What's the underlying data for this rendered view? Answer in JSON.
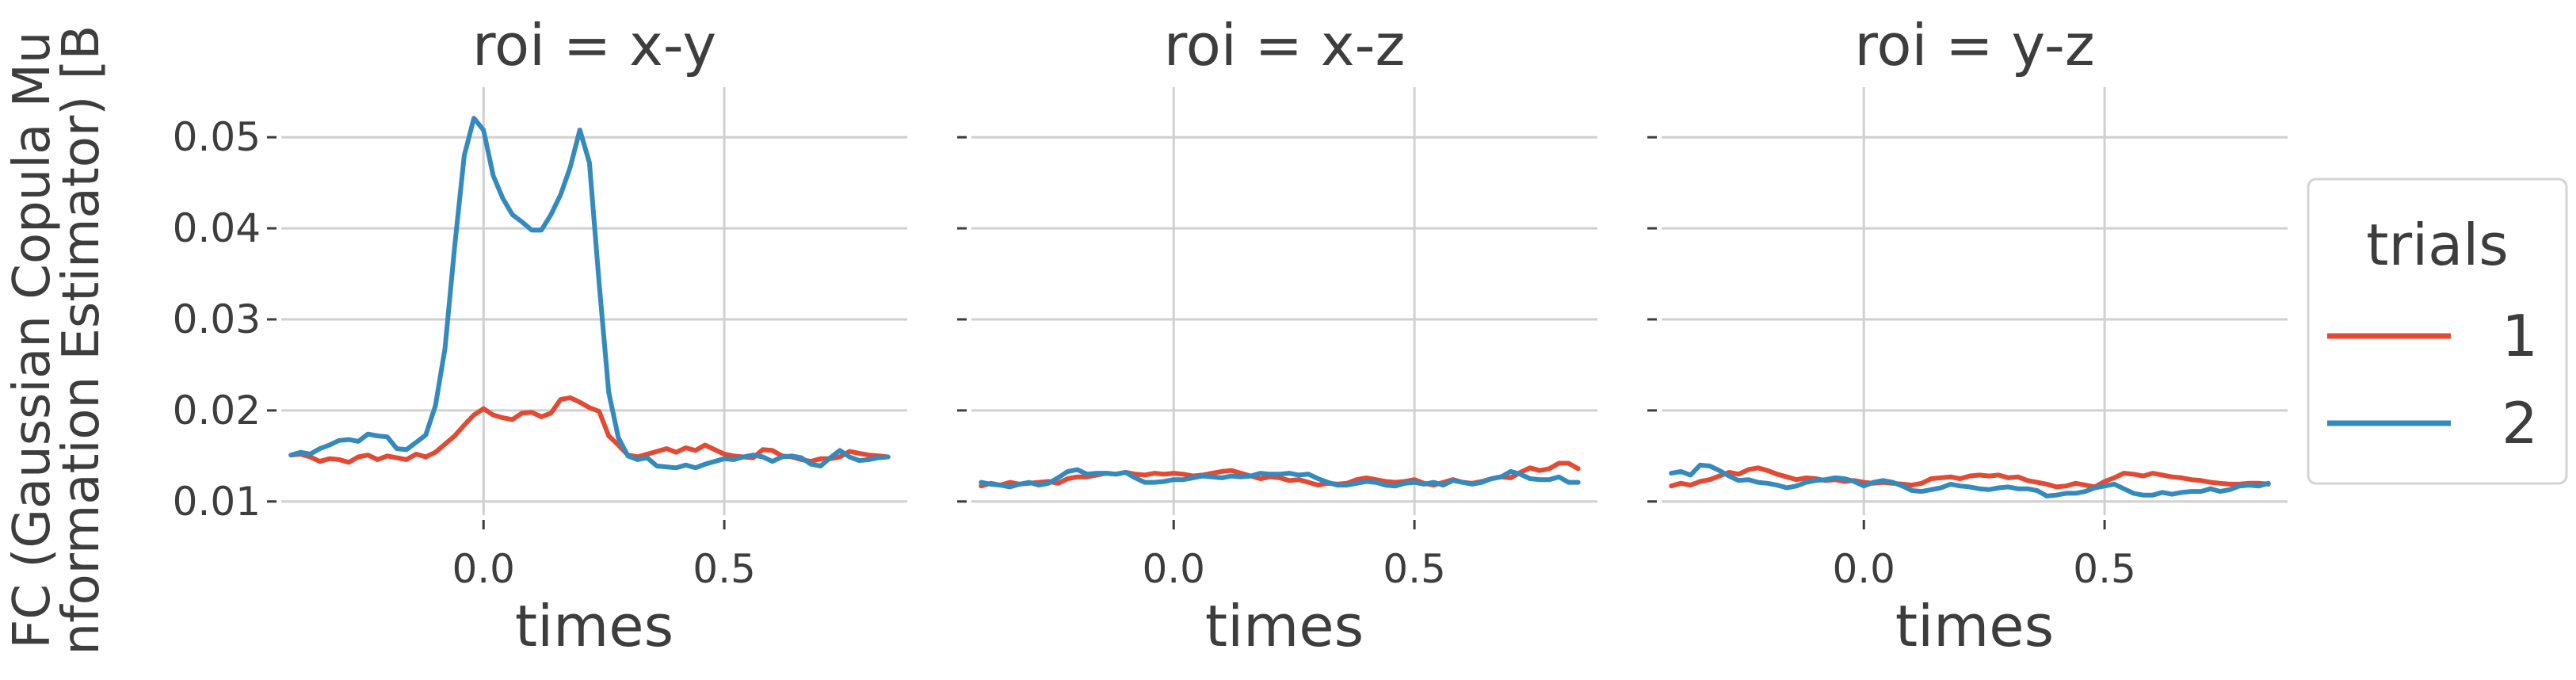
{
  "chart_data": {
    "type": "line",
    "ylabel_lines": [
      "FC (Gaussian Copula Mu",
      "nformation Estimator) [B"
    ],
    "ylim": [
      0.0085,
      0.0555
    ],
    "xlim": [
      -0.42,
      0.88
    ],
    "xticks": [
      0.0,
      0.5
    ],
    "xtick_labels": [
      "0.0",
      "0.5"
    ],
    "yticks": [
      0.01,
      0.02,
      0.03,
      0.04,
      0.05
    ],
    "ytick_labels": [
      "0.01",
      "0.02",
      "0.03",
      "0.04",
      "0.05"
    ],
    "grid": true,
    "colors": {
      "1": "#E24A33",
      "2": "#348ABD"
    },
    "legend": {
      "title": "trials",
      "placement": "right",
      "entries": [
        "1",
        "2"
      ]
    },
    "x": [
      -0.4,
      -0.38,
      -0.36,
      -0.34,
      -0.32,
      -0.3,
      -0.28,
      -0.26,
      -0.24,
      -0.22,
      -0.2,
      -0.18,
      -0.16,
      -0.14,
      -0.12,
      -0.1,
      -0.08,
      -0.06,
      -0.04,
      -0.02,
      0.0,
      0.02,
      0.04,
      0.06,
      0.08,
      0.1,
      0.12,
      0.14,
      0.16,
      0.18,
      0.2,
      0.22,
      0.24,
      0.26,
      0.28,
      0.3,
      0.32,
      0.34,
      0.36,
      0.38,
      0.4,
      0.42,
      0.44,
      0.46,
      0.48,
      0.5,
      0.52,
      0.54,
      0.56,
      0.58,
      0.6,
      0.62,
      0.64,
      0.66,
      0.68,
      0.7,
      0.72,
      0.74,
      0.76,
      0.78,
      0.8,
      0.82,
      0.84
    ],
    "panels": [
      {
        "title": "roi = x-y",
        "xlabel": "times",
        "series": [
          {
            "name": "1",
            "values": [
              0.0151,
              0.0152,
              0.0149,
              0.0144,
              0.0147,
              0.0146,
              0.0143,
              0.0149,
              0.0151,
              0.0146,
              0.015,
              0.0148,
              0.0146,
              0.0152,
              0.0149,
              0.0154,
              0.0163,
              0.0172,
              0.0184,
              0.0195,
              0.0202,
              0.0195,
              0.0192,
              0.019,
              0.0197,
              0.0198,
              0.0193,
              0.0197,
              0.0212,
              0.0214,
              0.0209,
              0.0203,
              0.0199,
              0.0172,
              0.0162,
              0.0151,
              0.0149,
              0.0152,
              0.0155,
              0.0158,
              0.0154,
              0.0159,
              0.0156,
              0.0162,
              0.0157,
              0.0152,
              0.015,
              0.0149,
              0.0148,
              0.0157,
              0.0156,
              0.015,
              0.0149,
              0.0146,
              0.0144,
              0.0147,
              0.0147,
              0.0149,
              0.0155,
              0.0153,
              0.0151,
              0.015,
              0.0149
            ]
          },
          {
            "name": "2",
            "values": [
              0.0151,
              0.0154,
              0.0152,
              0.0158,
              0.0162,
              0.0167,
              0.0168,
              0.0166,
              0.0174,
              0.0172,
              0.0171,
              0.0158,
              0.0157,
              0.0165,
              0.0173,
              0.0205,
              0.0268,
              0.038,
              0.048,
              0.0521,
              0.0508,
              0.0458,
              0.0433,
              0.0415,
              0.0407,
              0.0398,
              0.0398,
              0.0415,
              0.0437,
              0.0467,
              0.0508,
              0.0472,
              0.034,
              0.022,
              0.017,
              0.015,
              0.0146,
              0.0148,
              0.0139,
              0.0138,
              0.0137,
              0.014,
              0.0137,
              0.0141,
              0.0144,
              0.0147,
              0.0146,
              0.0149,
              0.0151,
              0.0149,
              0.0144,
              0.0149,
              0.015,
              0.0148,
              0.0141,
              0.0139,
              0.0148,
              0.0156,
              0.0149,
              0.0145,
              0.0146,
              0.0148,
              0.0149
            ]
          }
        ]
      },
      {
        "title": "roi = x-z",
        "xlabel": "times",
        "series": [
          {
            "name": "1",
            "values": [
              0.0117,
              0.012,
              0.0118,
              0.0121,
              0.0119,
              0.012,
              0.0121,
              0.0122,
              0.012,
              0.0125,
              0.0127,
              0.0127,
              0.0129,
              0.0131,
              0.013,
              0.0132,
              0.013,
              0.0129,
              0.0131,
              0.013,
              0.0131,
              0.013,
              0.0128,
              0.0129,
              0.0131,
              0.0133,
              0.0134,
              0.0131,
              0.0128,
              0.0125,
              0.0127,
              0.0126,
              0.0123,
              0.0124,
              0.0121,
              0.0118,
              0.012,
              0.0119,
              0.012,
              0.0124,
              0.0126,
              0.0124,
              0.0122,
              0.0121,
              0.0122,
              0.0124,
              0.012,
              0.0118,
              0.0121,
              0.0124,
              0.0121,
              0.012,
              0.0122,
              0.0125,
              0.0127,
              0.0126,
              0.0132,
              0.0137,
              0.0134,
              0.0136,
              0.0142,
              0.0142,
              0.0136
            ]
          },
          {
            "name": "2",
            "values": [
              0.0121,
              0.0119,
              0.0118,
              0.0116,
              0.0119,
              0.0121,
              0.0118,
              0.012,
              0.0126,
              0.0133,
              0.0135,
              0.013,
              0.0131,
              0.0131,
              0.013,
              0.0132,
              0.0126,
              0.0121,
              0.0121,
              0.0122,
              0.0124,
              0.0124,
              0.0126,
              0.0128,
              0.0127,
              0.0126,
              0.0128,
              0.0127,
              0.0128,
              0.0131,
              0.013,
              0.013,
              0.0131,
              0.0129,
              0.013,
              0.0125,
              0.0121,
              0.0118,
              0.0118,
              0.012,
              0.0122,
              0.0121,
              0.0118,
              0.0117,
              0.012,
              0.0121,
              0.0119,
              0.0121,
              0.0118,
              0.0123,
              0.0121,
              0.0119,
              0.0121,
              0.0125,
              0.0127,
              0.0133,
              0.013,
              0.0125,
              0.0124,
              0.0124,
              0.0127,
              0.0121,
              0.0121
            ]
          }
        ]
      },
      {
        "title": "roi = y-z",
        "xlabel": "times",
        "series": [
          {
            "name": "1",
            "values": [
              0.0117,
              0.012,
              0.0118,
              0.0122,
              0.0124,
              0.0128,
              0.0132,
              0.013,
              0.0135,
              0.0137,
              0.0134,
              0.013,
              0.0127,
              0.0124,
              0.0126,
              0.0125,
              0.0123,
              0.0124,
              0.0122,
              0.0123,
              0.0121,
              0.012,
              0.0121,
              0.012,
              0.0119,
              0.0118,
              0.012,
              0.0125,
              0.0126,
              0.0127,
              0.0125,
              0.0128,
              0.0129,
              0.0128,
              0.0129,
              0.0126,
              0.0127,
              0.0123,
              0.0121,
              0.0119,
              0.0116,
              0.0117,
              0.012,
              0.0118,
              0.0116,
              0.0122,
              0.0126,
              0.0131,
              0.013,
              0.0128,
              0.0131,
              0.0129,
              0.0127,
              0.0126,
              0.0124,
              0.0123,
              0.0121,
              0.012,
              0.0119,
              0.0119,
              0.012,
              0.012,
              0.0119
            ]
          },
          {
            "name": "2",
            "values": [
              0.0131,
              0.0133,
              0.0129,
              0.014,
              0.0139,
              0.0134,
              0.0128,
              0.0123,
              0.0124,
              0.0121,
              0.012,
              0.0118,
              0.0115,
              0.0117,
              0.0121,
              0.0123,
              0.0124,
              0.0126,
              0.0125,
              0.0122,
              0.0117,
              0.0121,
              0.0123,
              0.0121,
              0.0117,
              0.0112,
              0.0111,
              0.0113,
              0.0115,
              0.0119,
              0.0117,
              0.0116,
              0.0114,
              0.0113,
              0.0115,
              0.0116,
              0.0114,
              0.0114,
              0.0112,
              0.0106,
              0.0107,
              0.0109,
              0.0109,
              0.0111,
              0.0115,
              0.0117,
              0.0119,
              0.0114,
              0.0109,
              0.0107,
              0.0107,
              0.011,
              0.0108,
              0.011,
              0.0111,
              0.0111,
              0.0114,
              0.0111,
              0.0113,
              0.0117,
              0.0118,
              0.0117,
              0.012
            ]
          }
        ]
      }
    ]
  }
}
